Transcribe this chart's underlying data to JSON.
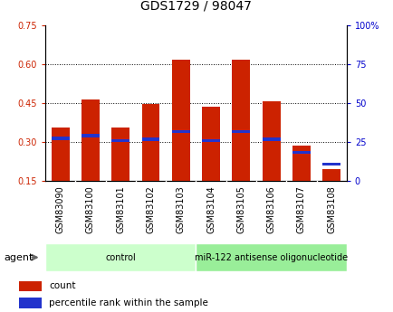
{
  "title": "GDS1729 / 98047",
  "categories": [
    "GSM83090",
    "GSM83100",
    "GSM83101",
    "GSM83102",
    "GSM83103",
    "GSM83104",
    "GSM83105",
    "GSM83106",
    "GSM83107",
    "GSM83108"
  ],
  "bar_heights": [
    0.355,
    0.465,
    0.355,
    0.447,
    0.615,
    0.435,
    0.615,
    0.455,
    0.285,
    0.195
  ],
  "blue_markers": [
    0.315,
    0.325,
    0.305,
    0.31,
    0.34,
    0.305,
    0.34,
    0.31,
    0.26,
    0.215
  ],
  "bar_bottom": 0.15,
  "bar_color": "#cc2200",
  "blue_color": "#2233cc",
  "ylim_left": [
    0.15,
    0.75
  ],
  "ylim_right": [
    0,
    100
  ],
  "yticks_left": [
    0.15,
    0.3,
    0.45,
    0.6,
    0.75
  ],
  "yticks_right": [
    0,
    25,
    50,
    75,
    100
  ],
  "ytick_labels_left": [
    "0.15",
    "0.30",
    "0.45",
    "0.60",
    "0.75"
  ],
  "ytick_labels_right": [
    "0",
    "25",
    "50",
    "75",
    "100%"
  ],
  "gridlines": [
    0.3,
    0.45,
    0.6
  ],
  "groups": [
    {
      "label": "control",
      "start": 0,
      "end": 5,
      "color": "#ccffcc"
    },
    {
      "label": "miR-122 antisense oligonucleotide",
      "start": 5,
      "end": 10,
      "color": "#99ee99"
    }
  ],
  "agent_label": "agent",
  "legend": [
    {
      "color": "#cc2200",
      "label": "count"
    },
    {
      "color": "#2233cc",
      "label": "percentile rank within the sample"
    }
  ],
  "bar_width": 0.6,
  "tick_area_bg": "#c8c8c8",
  "title_fontsize": 10,
  "label_fontsize": 7,
  "tick_fontsize": 7
}
